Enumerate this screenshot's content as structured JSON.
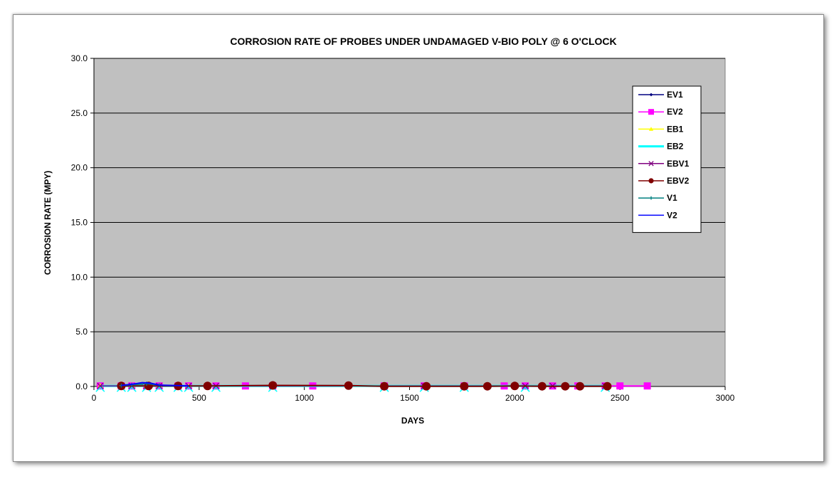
{
  "chart_data": {
    "type": "line",
    "title": "CORROSION RATE OF PROBES UNDER UNDAMAGED V-BIO POLY @ 6 O'CLOCK",
    "xlabel": "DAYS",
    "ylabel": "CORROSION RATE (MPY)",
    "xlim": [
      0,
      3000
    ],
    "ylim": [
      0,
      30
    ],
    "x_ticks": [
      0,
      500,
      1000,
      1500,
      2000,
      2500,
      3000
    ],
    "y_ticks": [
      0,
      5,
      10,
      15,
      20,
      25,
      30
    ],
    "x_tick_labels": [
      "0",
      "500",
      "1000",
      "1500",
      "2000",
      "2500",
      "3000"
    ],
    "y_tick_labels": [
      "0.0",
      "5.0",
      "10.0",
      "15.0",
      "20.0",
      "25.0",
      "30.0"
    ],
    "grid": "horizontal",
    "legend_position": "top-right",
    "plot_background": "#c0c0c0",
    "series": [
      {
        "name": "EV1",
        "color": "#000080",
        "marker": "diamond",
        "x": [
          30,
          130,
          180,
          250,
          310,
          400,
          450
        ],
        "y": [
          0.05,
          0.08,
          0.12,
          0.2,
          0.1,
          0.06,
          0.05
        ]
      },
      {
        "name": "EV2",
        "color": "#ff00ff",
        "marker": "square",
        "x": [
          30,
          130,
          180,
          250,
          310,
          400,
          450,
          580,
          720,
          850,
          1040,
          1380,
          1570,
          1760,
          1950,
          2050,
          2180,
          2300,
          2430,
          2500,
          2630
        ],
        "y": [
          0.05,
          0.05,
          0.05,
          0.05,
          0.05,
          0.05,
          0.05,
          0.05,
          0.05,
          0.05,
          0.05,
          0.05,
          0.05,
          0.05,
          0.05,
          0.05,
          0.05,
          0.05,
          0.05,
          0.05,
          0.05
        ]
      },
      {
        "name": "EB1",
        "color": "#ffff00",
        "marker": "triangle",
        "x": [
          30,
          130,
          180,
          250,
          310,
          400,
          450
        ],
        "y": [
          0.06,
          0.07,
          0.09,
          0.1,
          0.07,
          0.06,
          0.05
        ]
      },
      {
        "name": "EB2",
        "color": "#00ffff",
        "marker": "none",
        "x": [
          30,
          130,
          180,
          250,
          310,
          400,
          450,
          580,
          850,
          1380,
          1570,
          1760,
          2050,
          2430
        ],
        "y": [
          0.05,
          0.05,
          0.05,
          0.05,
          0.05,
          0.05,
          0.05,
          0.05,
          0.05,
          0.05,
          0.05,
          0.05,
          0.05,
          0.05
        ]
      },
      {
        "name": "EBV1",
        "color": "#800080",
        "marker": "x",
        "x": [
          30,
          130,
          180,
          250,
          310,
          400,
          450,
          580,
          850,
          1380,
          1570,
          1760,
          2050,
          2180,
          2430
        ],
        "y": [
          0.05,
          0.05,
          0.05,
          0.05,
          0.05,
          0.05,
          0.05,
          0.05,
          0.05,
          0.05,
          0.05,
          0.05,
          0.05,
          0.05,
          0.05
        ]
      },
      {
        "name": "EBV2",
        "color": "#800000",
        "marker": "circle",
        "x": [
          130,
          260,
          400,
          540,
          850,
          1210,
          1380,
          1580,
          1760,
          1870,
          2000,
          2130,
          2240,
          2310,
          2440
        ],
        "y": [
          0.05,
          0.05,
          0.05,
          0.05,
          0.1,
          0.08,
          0.02,
          0.02,
          0.02,
          0.02,
          0.05,
          0.02,
          0.02,
          0.02,
          0.02
        ]
      },
      {
        "name": "V1",
        "color": "#008080",
        "marker": "plus",
        "x": [
          130,
          180,
          250,
          310
        ],
        "y": [
          0.08,
          0.15,
          0.25,
          0.12
        ]
      },
      {
        "name": "V2",
        "color": "#0000ff",
        "marker": "none",
        "x": [
          130,
          180,
          230,
          270,
          310,
          400,
          450
        ],
        "y": [
          0.1,
          0.2,
          0.35,
          0.3,
          0.12,
          0.08,
          0.05
        ]
      }
    ]
  }
}
